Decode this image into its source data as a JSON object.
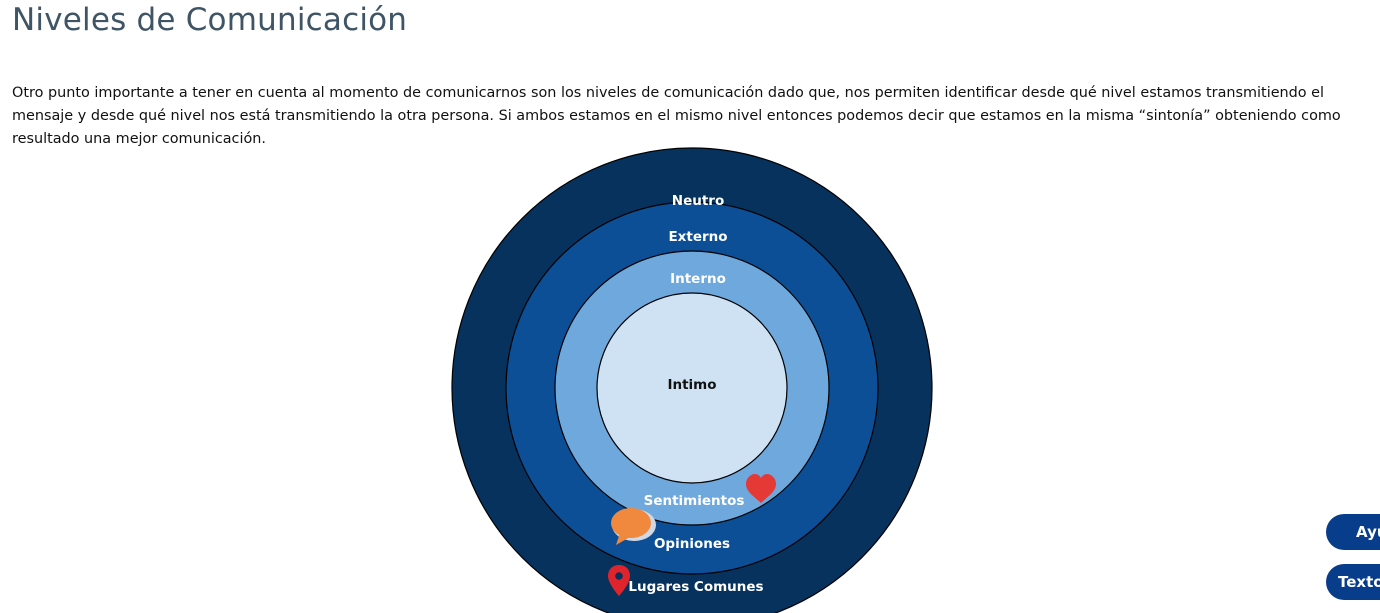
{
  "page": {
    "title": "Niveles de Comunicación",
    "intro": "Otro punto importante a tener en cuenta al momento de comunicarnos son los niveles de comunicación dado que, nos permiten identificar desde qué nivel estamos transmitiendo el mensaje y desde qué nivel nos está transmitiendo la otra persona. Si ambos estamos en el mismo nivel entonces podemos decir que estamos en la misma “sintonía” obteniendo como resultado una mejor comunicación."
  },
  "diagram": {
    "rings": [
      {
        "name": "Neutro",
        "color": "#07325d"
      },
      {
        "name": "Externo",
        "color": "#0c4f96"
      },
      {
        "name": "Interno",
        "color": "#6fa8dc"
      },
      {
        "name": "Intimo",
        "color": "#cfe2f3"
      }
    ],
    "ring_labels": {
      "neutro": "Neutro",
      "externo": "Externo",
      "interno": "Interno",
      "intimo": "Intimo"
    },
    "item_labels": {
      "sentimientos": "Sentimientos",
      "opiniones": "Opiniones",
      "lugares_comunes": "Lugares Comunes"
    },
    "icons": {
      "sentimientos": "heart-icon",
      "opiniones": "speech-bubble-icon",
      "lugares_comunes": "map-pin-icon"
    },
    "icon_colors": {
      "heart": "#e53935",
      "bubble": "#f0893e",
      "pin": "#e0242c"
    }
  },
  "floating_buttons": {
    "help": "Ayuda",
    "text": "Texto"
  }
}
